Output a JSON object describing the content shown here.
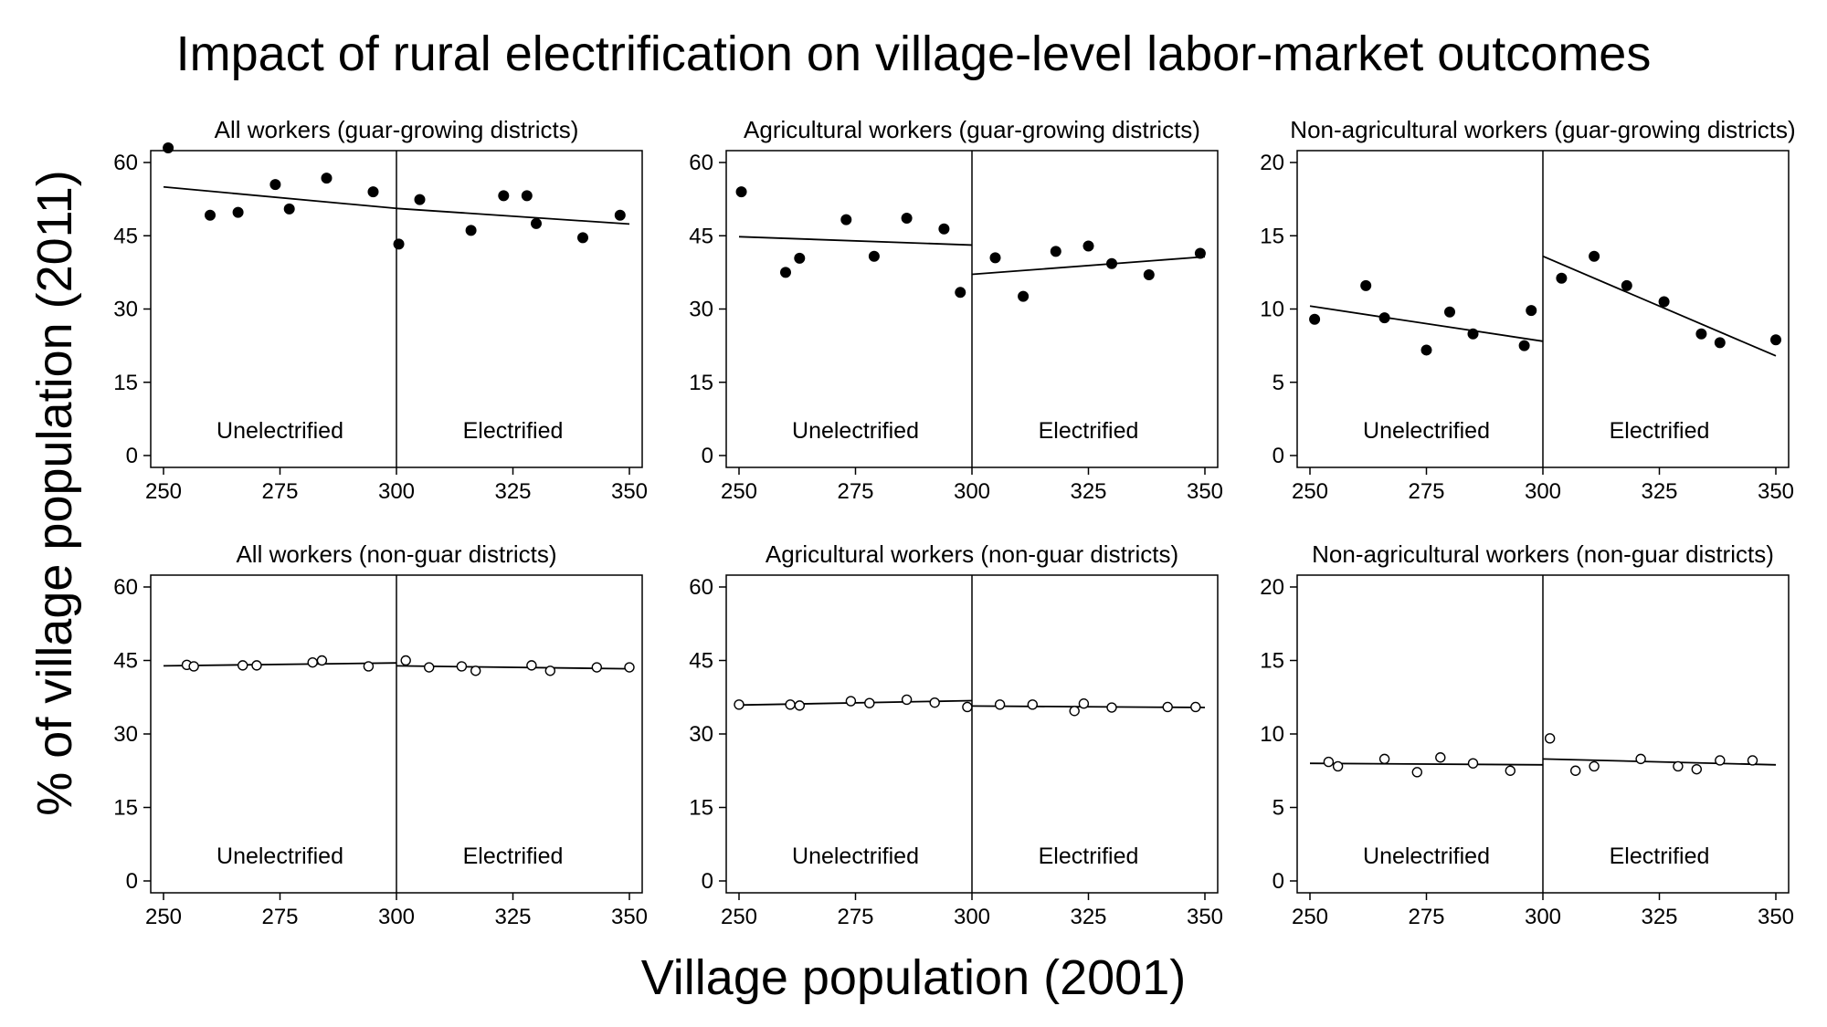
{
  "title": "Impact of rural electrification on village-level labor-market outcomes",
  "xlabel": "Village population (2001)",
  "ylabel": "% of village population (2011)",
  "chart_data": [
    {
      "type": "scatter",
      "title": "All workers (guar-growing districts)",
      "xlim": [
        250,
        350
      ],
      "ylim": [
        0,
        60
      ],
      "xticks": [
        250,
        275,
        300,
        325,
        350
      ],
      "yticks": [
        0,
        15,
        30,
        45,
        60
      ],
      "cutoff": 300,
      "region_labels": [
        "Unelectrified",
        "Electrified"
      ],
      "marker": "filled",
      "points": [
        [
          251,
          63
        ],
        [
          260,
          49.2
        ],
        [
          266,
          49.8
        ],
        [
          274,
          55.5
        ],
        [
          277,
          50.5
        ],
        [
          285,
          56.8
        ],
        [
          295,
          54
        ],
        [
          300.5,
          43.3
        ],
        [
          305,
          52.4
        ],
        [
          316,
          46.1
        ],
        [
          323,
          53.2
        ],
        [
          328,
          53.2
        ],
        [
          330,
          47.5
        ],
        [
          340,
          44.6
        ],
        [
          348,
          49.2
        ]
      ],
      "fit": [
        {
          "x": [
            250,
            300
          ],
          "y": [
            55,
            50.6
          ]
        },
        {
          "x": [
            300,
            350
          ],
          "y": [
            50.6,
            47.4
          ]
        }
      ]
    },
    {
      "type": "scatter",
      "title": "Agricultural workers (guar-growing districts)",
      "xlim": [
        250,
        350
      ],
      "ylim": [
        0,
        60
      ],
      "xticks": [
        250,
        275,
        300,
        325,
        350
      ],
      "yticks": [
        0,
        15,
        30,
        45,
        60
      ],
      "cutoff": 300,
      "region_labels": [
        "Unelectrified",
        "Electrified"
      ],
      "marker": "filled",
      "points": [
        [
          250.5,
          54
        ],
        [
          260,
          37.5
        ],
        [
          263,
          40.4
        ],
        [
          273,
          48.3
        ],
        [
          279,
          40.8
        ],
        [
          286,
          48.6
        ],
        [
          294,
          46.4
        ],
        [
          297.5,
          33.4
        ],
        [
          305,
          40.5
        ],
        [
          311,
          32.6
        ],
        [
          318,
          41.8
        ],
        [
          325,
          42.9
        ],
        [
          330,
          39.3
        ],
        [
          338,
          37
        ],
        [
          349,
          41.4
        ]
      ],
      "fit": [
        {
          "x": [
            250,
            300
          ],
          "y": [
            44.8,
            43.1
          ]
        },
        {
          "x": [
            300,
            350
          ],
          "y": [
            37.1,
            40.7
          ]
        }
      ]
    },
    {
      "type": "scatter",
      "title": "Non-agricultural workers (guar-growing districts)",
      "xlim": [
        250,
        350
      ],
      "ylim": [
        0,
        20
      ],
      "xticks": [
        250,
        275,
        300,
        325,
        350
      ],
      "yticks": [
        0,
        5,
        10,
        15,
        20
      ],
      "cutoff": 300,
      "region_labels": [
        "Unelectrified",
        "Electrified"
      ],
      "marker": "filled",
      "points": [
        [
          251,
          9.3
        ],
        [
          262,
          11.6
        ],
        [
          266,
          9.4
        ],
        [
          275,
          7.2
        ],
        [
          280,
          9.8
        ],
        [
          285,
          8.3
        ],
        [
          296,
          7.5
        ],
        [
          297.5,
          9.9
        ],
        [
          304,
          12.1
        ],
        [
          311,
          13.6
        ],
        [
          318,
          11.6
        ],
        [
          326,
          10.5
        ],
        [
          334,
          8.3
        ],
        [
          338,
          7.7
        ],
        [
          350,
          7.9
        ]
      ],
      "fit": [
        {
          "x": [
            250,
            300
          ],
          "y": [
            10.2,
            7.8
          ]
        },
        {
          "x": [
            300,
            350
          ],
          "y": [
            13.6,
            6.8
          ]
        }
      ]
    },
    {
      "type": "scatter",
      "title": "All workers (non-guar districts)",
      "xlim": [
        250,
        350
      ],
      "ylim": [
        0,
        60
      ],
      "xticks": [
        250,
        275,
        300,
        325,
        350
      ],
      "yticks": [
        0,
        15,
        30,
        45,
        60
      ],
      "cutoff": 300,
      "region_labels": [
        "Unelectrified",
        "Electrified"
      ],
      "marker": "hollow",
      "points": [
        [
          255,
          44.1
        ],
        [
          256.5,
          43.8
        ],
        [
          267,
          44
        ],
        [
          270,
          44
        ],
        [
          282,
          44.6
        ],
        [
          284,
          45
        ],
        [
          294,
          43.8
        ],
        [
          302,
          45
        ],
        [
          307,
          43.6
        ],
        [
          314,
          43.8
        ],
        [
          317,
          42.9
        ],
        [
          329,
          44
        ],
        [
          333,
          42.9
        ],
        [
          343,
          43.6
        ],
        [
          350,
          43.6
        ]
      ],
      "fit": [
        {
          "x": [
            250,
            300
          ],
          "y": [
            43.9,
            44.5
          ]
        },
        {
          "x": [
            300,
            350
          ],
          "y": [
            43.9,
            43.3
          ]
        }
      ]
    },
    {
      "type": "scatter",
      "title": "Agricultural workers (non-guar districts)",
      "xlim": [
        250,
        350
      ],
      "ylim": [
        0,
        60
      ],
      "xticks": [
        250,
        275,
        300,
        325,
        350
      ],
      "yticks": [
        0,
        15,
        30,
        45,
        60
      ],
      "cutoff": 300,
      "region_labels": [
        "Unelectrified",
        "Electrified"
      ],
      "marker": "hollow",
      "points": [
        [
          250,
          36
        ],
        [
          261,
          36
        ],
        [
          263,
          35.8
        ],
        [
          274,
          36.7
        ],
        [
          278,
          36.3
        ],
        [
          286,
          37
        ],
        [
          292,
          36.4
        ],
        [
          299,
          35.5
        ],
        [
          306,
          36
        ],
        [
          313,
          36
        ],
        [
          322,
          34.7
        ],
        [
          324,
          36.2
        ],
        [
          330,
          35.4
        ],
        [
          342,
          35.5
        ],
        [
          348,
          35.5
        ]
      ],
      "fit": [
        {
          "x": [
            250,
            300
          ],
          "y": [
            35.9,
            36.8
          ]
        },
        {
          "x": [
            300,
            350
          ],
          "y": [
            35.7,
            35.4
          ]
        }
      ]
    },
    {
      "type": "scatter",
      "title": "Non-agricultural workers (non-guar districts)",
      "xlim": [
        250,
        350
      ],
      "ylim": [
        0,
        20
      ],
      "xticks": [
        250,
        275,
        300,
        325,
        350
      ],
      "yticks": [
        0,
        5,
        10,
        15,
        20
      ],
      "cutoff": 300,
      "region_labels": [
        "Unelectrified",
        "Electrified"
      ],
      "marker": "hollow",
      "points": [
        [
          254,
          8.1
        ],
        [
          256,
          7.8
        ],
        [
          266,
          8.3
        ],
        [
          273,
          7.4
        ],
        [
          278,
          8.4
        ],
        [
          285,
          8
        ],
        [
          293,
          7.5
        ],
        [
          301.5,
          9.7
        ],
        [
          307,
          7.5
        ],
        [
          311,
          7.8
        ],
        [
          321,
          8.3
        ],
        [
          329,
          7.8
        ],
        [
          333,
          7.6
        ],
        [
          338,
          8.2
        ],
        [
          345,
          8.2
        ]
      ],
      "fit": [
        {
          "x": [
            250,
            300
          ],
          "y": [
            8,
            7.9
          ]
        },
        {
          "x": [
            300,
            350
          ],
          "y": [
            8.3,
            7.9
          ]
        }
      ]
    }
  ]
}
